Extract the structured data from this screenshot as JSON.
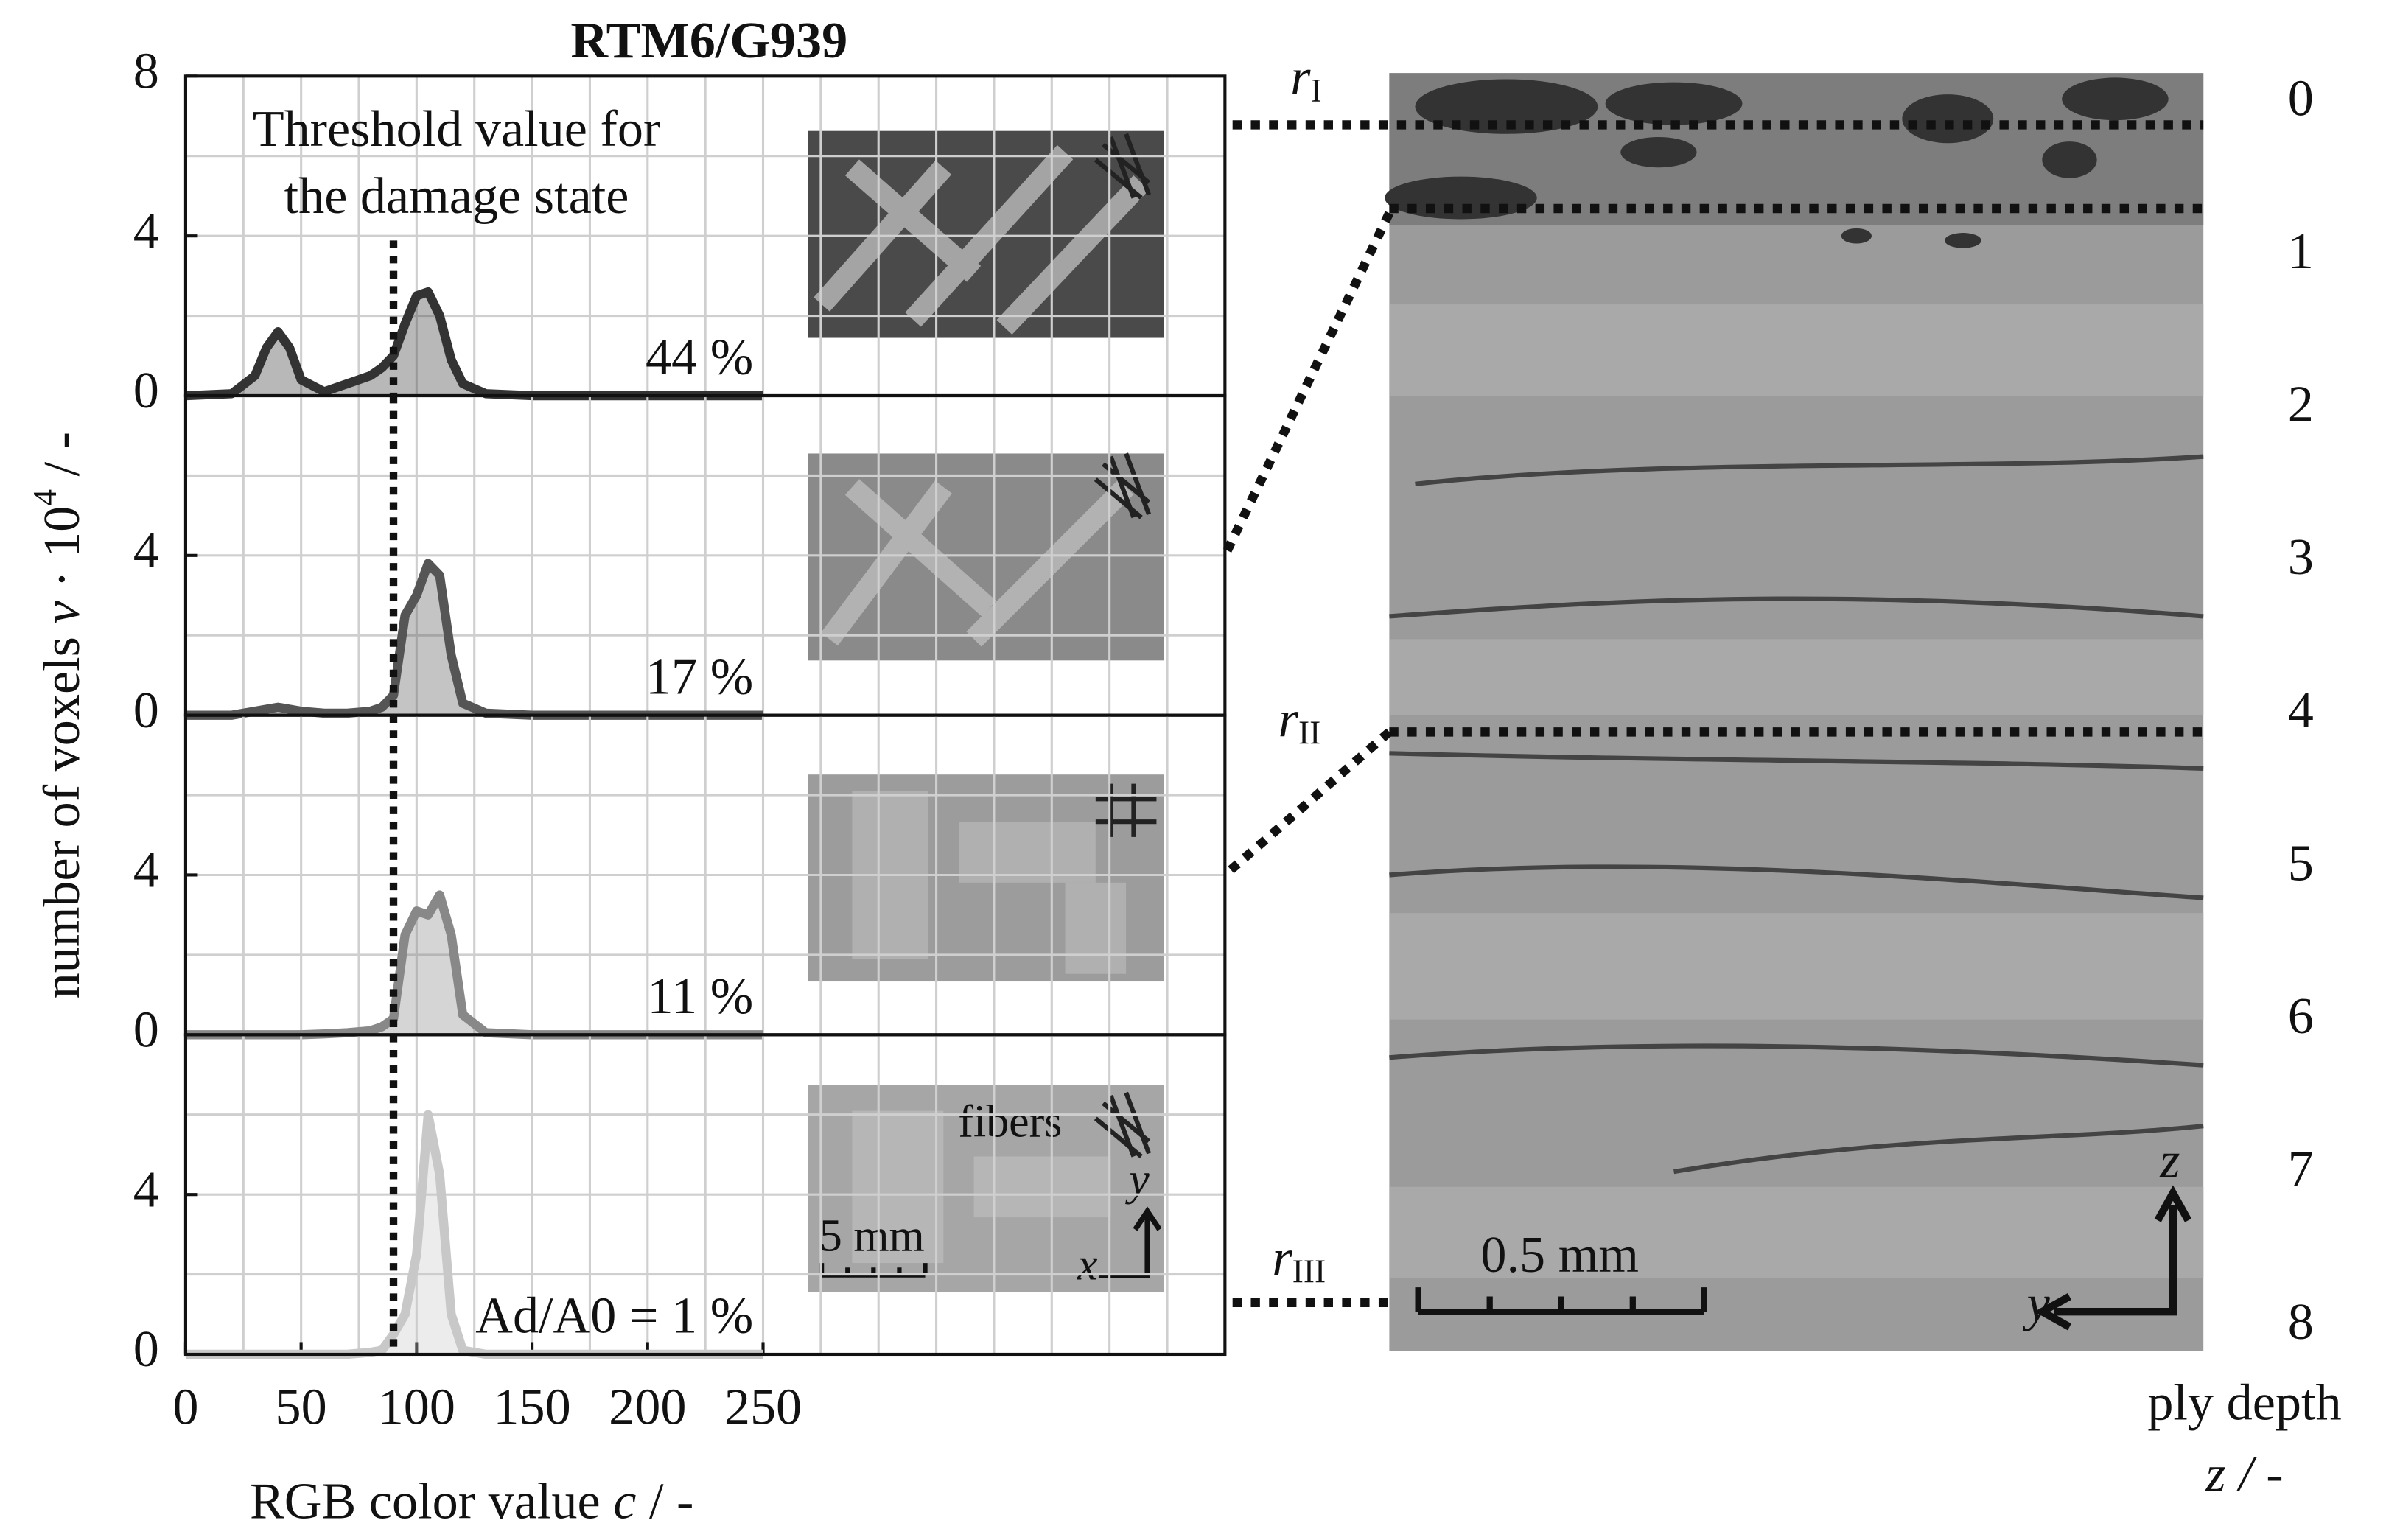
{
  "title": "RTM6/G939",
  "y_label": [
    "number of voxels ",
    "v",
    " · 10",
    "4",
    " / -"
  ],
  "x_label": [
    "RGB color value ",
    "c",
    " / -"
  ],
  "threshold_text": [
    "Threshold value for",
    "the damage state"
  ],
  "inset_labels": {
    "fibers": "fibers",
    "scale": "5 mm",
    "x": "x",
    "y": "y"
  },
  "chart_data": [
    {
      "type": "area",
      "color": "#333333",
      "x": [
        0,
        20,
        30,
        35,
        40,
        45,
        50,
        60,
        70,
        80,
        85,
        90,
        95,
        100,
        105,
        110,
        115,
        120,
        130,
        150,
        250
      ],
      "values": [
        0,
        0.05,
        0.5,
        1.2,
        1.6,
        1.2,
        0.4,
        0.1,
        0.3,
        0.5,
        0.7,
        1.0,
        1.8,
        2.5,
        2.6,
        2.0,
        0.9,
        0.3,
        0.05,
        0,
        0
      ],
      "xlim": [
        0,
        450
      ],
      "ylim": [
        0,
        8
      ],
      "yticks": [
        0,
        4,
        8
      ],
      "grid_step_x": 25,
      "grid_step_y": 2,
      "threshold": 90,
      "damage": 44,
      "damage_label": "44 %"
    },
    {
      "type": "area",
      "color": "#555555",
      "x": [
        0,
        20,
        30,
        35,
        40,
        45,
        50,
        60,
        70,
        80,
        85,
        90,
        95,
        100,
        105,
        110,
        115,
        120,
        130,
        150,
        250
      ],
      "values": [
        0,
        0,
        0.1,
        0.15,
        0.2,
        0.15,
        0.1,
        0.05,
        0.05,
        0.1,
        0.2,
        0.5,
        2.5,
        3.0,
        3.8,
        3.5,
        1.5,
        0.3,
        0.05,
        0,
        0
      ],
      "xlim": [
        0,
        450
      ],
      "ylim": [
        0,
        8
      ],
      "yticks": [
        0,
        4
      ],
      "grid_step_x": 25,
      "grid_step_y": 2,
      "threshold": 90,
      "damage": 17,
      "damage_label": "17 %"
    },
    {
      "type": "area",
      "color": "#888888",
      "x": [
        0,
        20,
        30,
        35,
        40,
        45,
        50,
        60,
        70,
        80,
        85,
        90,
        95,
        100,
        105,
        110,
        115,
        120,
        130,
        150,
        250
      ],
      "values": [
        0,
        0,
        0,
        0,
        0,
        0,
        0,
        0.02,
        0.05,
        0.1,
        0.2,
        0.4,
        2.5,
        3.1,
        3.0,
        3.5,
        2.5,
        0.5,
        0.05,
        0,
        0
      ],
      "xlim": [
        0,
        450
      ],
      "ylim": [
        0,
        8
      ],
      "yticks": [
        0,
        4
      ],
      "grid_step_x": 25,
      "grid_step_y": 2,
      "threshold": 90,
      "damage": 11,
      "damage_label": "11 %"
    },
    {
      "type": "area",
      "color": "#c8c8c8",
      "x": [
        0,
        20,
        30,
        35,
        40,
        45,
        50,
        60,
        70,
        80,
        85,
        90,
        95,
        100,
        105,
        110,
        115,
        120,
        130,
        150,
        250
      ],
      "values": [
        0,
        0,
        0,
        0,
        0,
        0,
        0,
        0,
        0,
        0.05,
        0.1,
        0.5,
        1.0,
        2.5,
        6.0,
        4.5,
        1.0,
        0.1,
        0,
        0,
        0
      ],
      "xlim": [
        0,
        450
      ],
      "ylim": [
        0,
        8
      ],
      "yticks": [
        0,
        4
      ],
      "grid_step_x": 25,
      "grid_step_y": 2,
      "threshold": 90,
      "damage": 1,
      "damage_label": "Ad/A0 = 1 %",
      "xticks": [
        0,
        50,
        100,
        150,
        200,
        250
      ]
    }
  ],
  "ct": {
    "scale": "0.5 mm",
    "y": "y",
    "z": "z",
    "depth_label": "ply depth",
    "depth_unit": "z / -",
    "depth_ticks": [
      0,
      1,
      2,
      3,
      4,
      5,
      6,
      7,
      8
    ],
    "depth_lim": [
      0,
      8
    ],
    "sections": [
      {
        "r": "r",
        "sub": "I"
      },
      {
        "r": "r",
        "sub": "II"
      },
      {
        "r": "r",
        "sub": "III"
      }
    ]
  }
}
